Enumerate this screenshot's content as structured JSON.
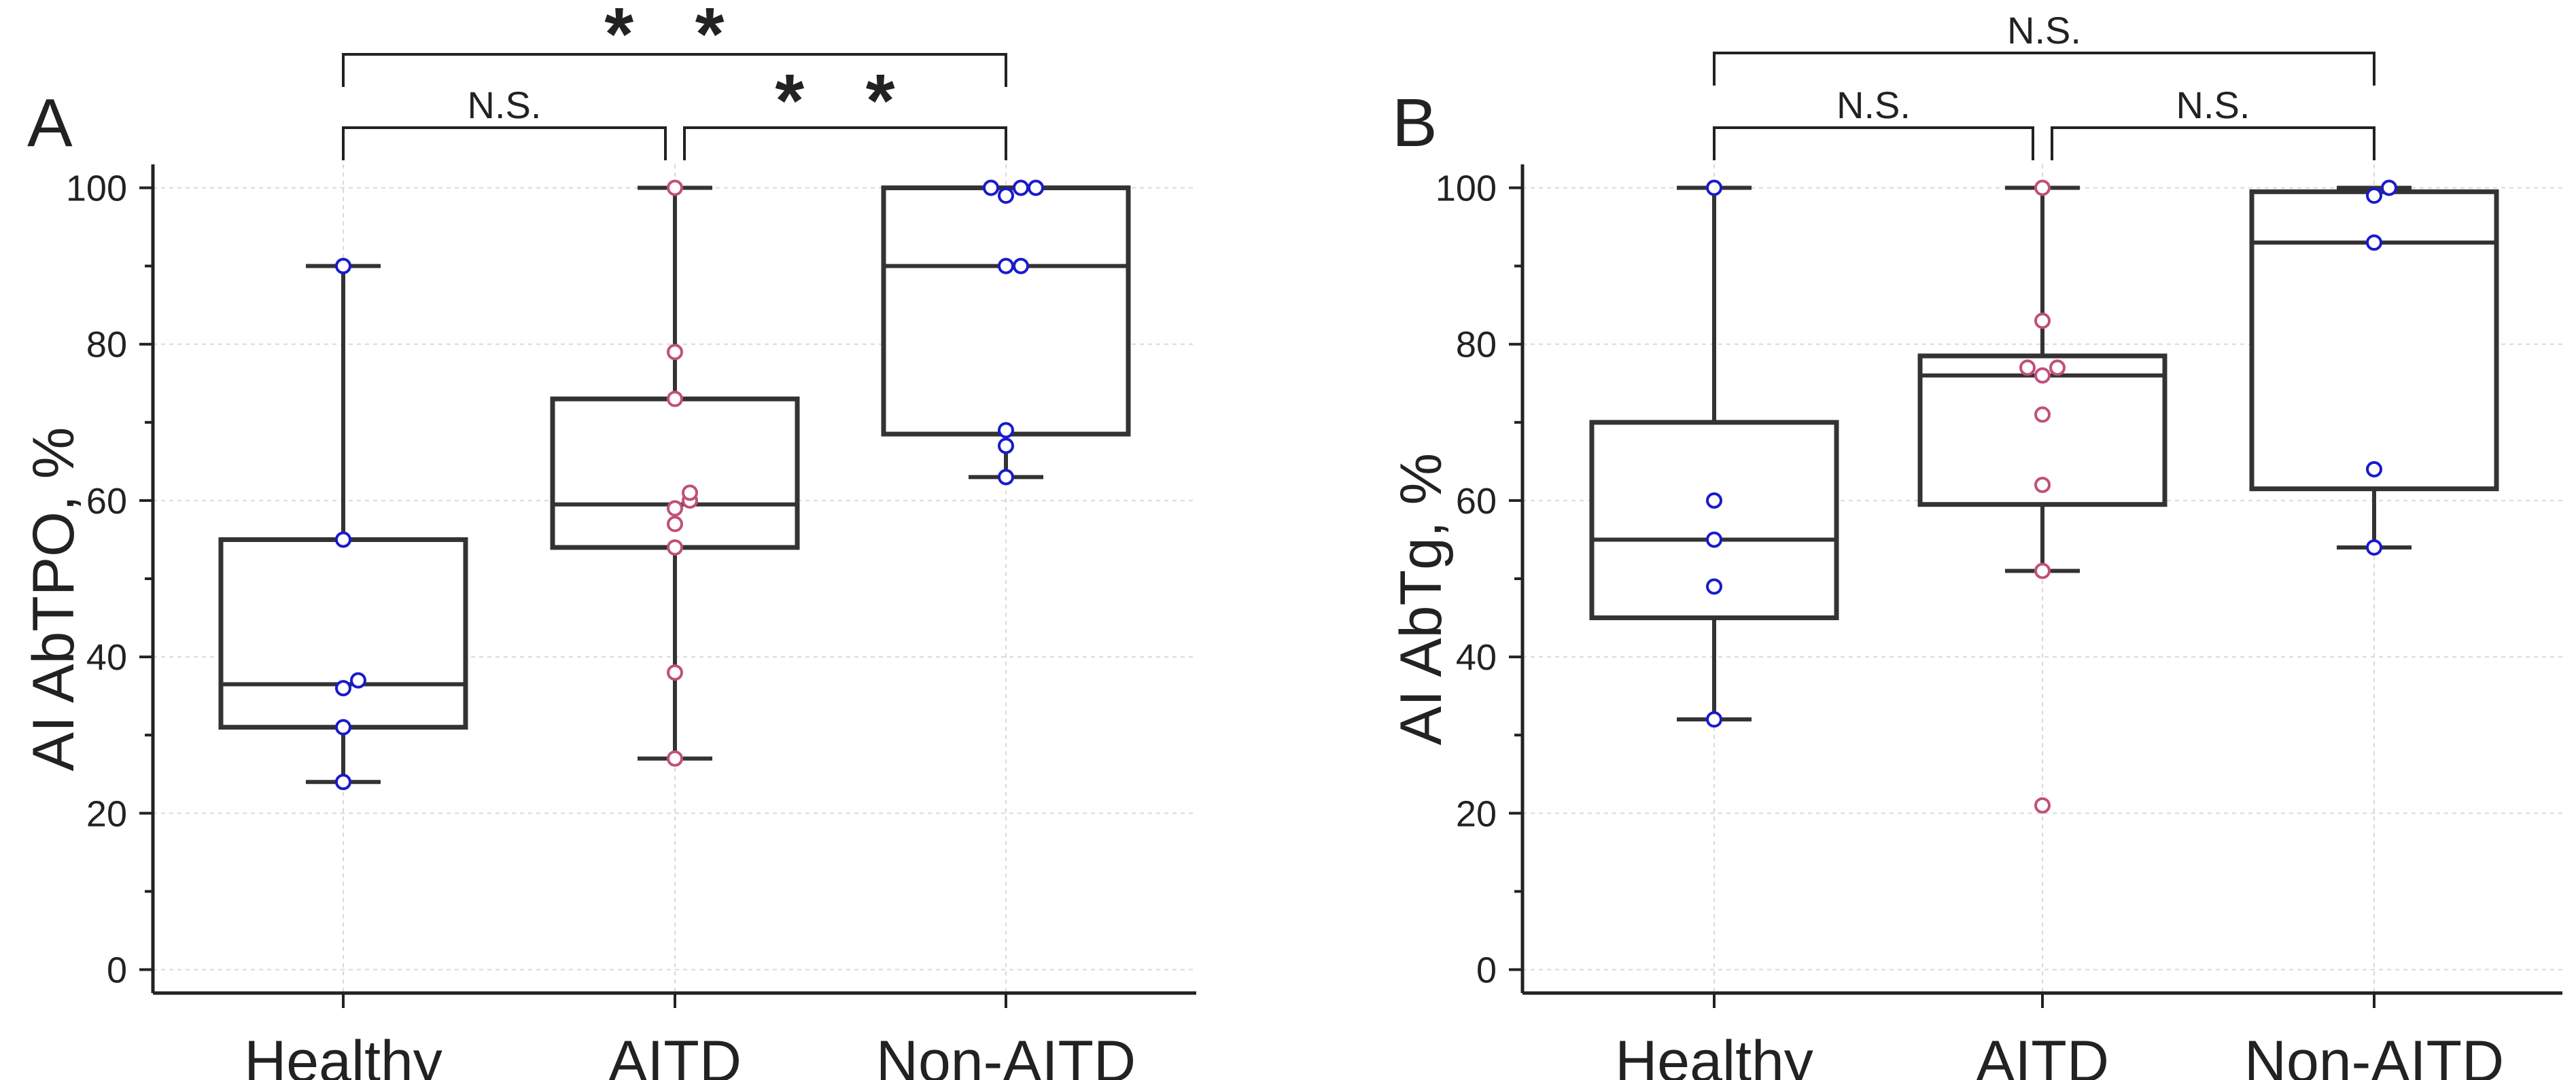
{
  "colors": {
    "axis": "#222222",
    "box": "#333333",
    "grid": "#d9d9d9",
    "healthy_point": "#1a1acc",
    "aitd_point": "#c0507a",
    "nonaitd_point": "#1a1acc"
  },
  "chart_data": [
    {
      "type": "box",
      "panel_label": "A",
      "ylabel": "AI AbTPO, %",
      "xlabel": "",
      "ylim": [
        -3,
        103
      ],
      "yticks": [
        0,
        20,
        40,
        60,
        80,
        100
      ],
      "grid": true,
      "categories": [
        "Healthy",
        "AITD",
        "Non-AITD"
      ],
      "series": [
        {
          "name": "Healthy",
          "whisker_low": 24,
          "q1": 31,
          "median": 36.5,
          "q3": 55,
          "whisker_high": 90,
          "points": [
            24,
            31,
            36,
            37,
            55,
            90
          ],
          "point_color": "#1a1acc"
        },
        {
          "name": "AITD",
          "whisker_low": 27,
          "q1": 54,
          "median": 59.5,
          "q3": 73,
          "whisker_high": 100,
          "points": [
            27,
            38,
            54,
            57,
            59,
            60,
            61,
            73,
            79,
            100
          ],
          "point_color": "#c0507a"
        },
        {
          "name": "Non-AITD",
          "whisker_low": 63,
          "q1": 68.5,
          "median": 90,
          "q3": 100,
          "whisker_high": 100,
          "points": [
            63,
            67,
            69,
            90,
            90,
            99,
            100,
            100,
            100
          ],
          "point_color": "#1a1acc"
        }
      ],
      "significance": [
        {
          "from": "Healthy",
          "to": "AITD",
          "label": "N.S.",
          "level": 1
        },
        {
          "from": "AITD",
          "to": "Non-AITD",
          "label": "* *",
          "level": 1
        },
        {
          "from": "Healthy",
          "to": "Non-AITD",
          "label": "* *",
          "level": 2
        }
      ]
    },
    {
      "type": "box",
      "panel_label": "B",
      "ylabel": "AI AbTg, %",
      "xlabel": "",
      "ylim": [
        -3,
        103
      ],
      "yticks": [
        0,
        20,
        40,
        60,
        80,
        100
      ],
      "grid": true,
      "categories": [
        "Healthy",
        "AITD",
        "Non-AITD"
      ],
      "series": [
        {
          "name": "Healthy",
          "whisker_low": 32,
          "q1": 45,
          "median": 55,
          "q3": 70,
          "whisker_high": 100,
          "points": [
            32,
            49,
            55,
            60,
            100
          ],
          "point_color": "#1a1acc"
        },
        {
          "name": "AITD",
          "whisker_low": 51,
          "q1": 59.5,
          "median": 76,
          "q3": 78.5,
          "whisker_high": 100,
          "points": [
            21,
            51,
            62,
            71,
            76,
            77,
            77,
            83,
            100
          ],
          "point_color": "#c0507a"
        },
        {
          "name": "Non-AITD",
          "whisker_low": 54,
          "q1": 61.5,
          "median": 93,
          "q3": 99.5,
          "whisker_high": 100,
          "points": [
            54,
            64,
            93,
            99,
            100
          ],
          "point_color": "#1a1acc"
        }
      ],
      "significance": [
        {
          "from": "Healthy",
          "to": "AITD",
          "label": "N.S.",
          "level": 1
        },
        {
          "from": "AITD",
          "to": "Non-AITD",
          "label": "N.S.",
          "level": 1
        },
        {
          "from": "Healthy",
          "to": "Non-AITD",
          "label": "N.S.",
          "level": 2
        }
      ]
    }
  ]
}
